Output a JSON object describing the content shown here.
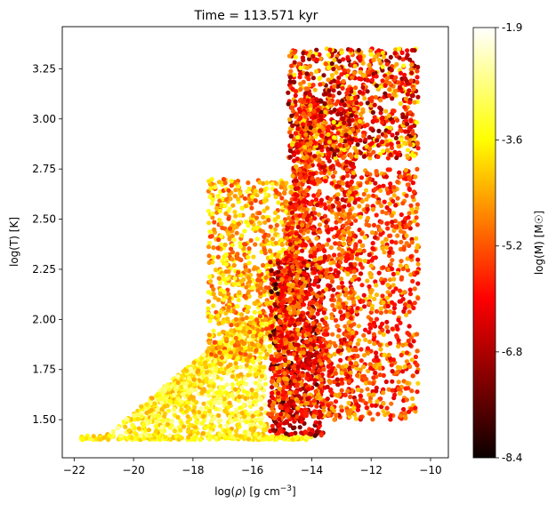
{
  "chart_data": {
    "type": "scatter",
    "title": "Time = 113.571 kyr",
    "xlabel_main": "log(",
    "xlabel_rho": "ρ",
    "xlabel_units": ") [g cm",
    "xlabel_exp": "−3",
    "xlabel_end": "]",
    "ylabel": "log(T) [K]",
    "colorbar_label": "log(M) [M☉]",
    "xlim": [
      -22.4,
      -9.4
    ],
    "ylim": [
      1.31,
      3.46
    ],
    "xticks": [
      -22,
      -20,
      -18,
      -16,
      -14,
      -12,
      -10
    ],
    "xtick_labels": [
      "−22",
      "−20",
      "−18",
      "−16",
      "−14",
      "−12",
      "−10"
    ],
    "yticks": [
      1.5,
      1.75,
      2.0,
      2.25,
      2.5,
      2.75,
      3.0,
      3.25
    ],
    "ytick_labels": [
      "1.50",
      "1.75",
      "2.00",
      "2.25",
      "2.50",
      "2.75",
      "3.00",
      "3.25"
    ],
    "colorbar": {
      "colormap": "hot",
      "range": [
        -8.4,
        -1.9
      ],
      "ticks": [
        -1.9,
        -3.6,
        -5.2,
        -6.8,
        -8.4
      ],
      "tick_labels": [
        "-1.9",
        "-3.6",
        "-5.2",
        "-6.8",
        "-8.4"
      ]
    },
    "point_bands": [
      {
        "name": "low-density-floor",
        "x": [
          -21.8,
          -14.0
        ],
        "y": [
          1.4,
          1.42
        ],
        "cmin": -4.2,
        "cmax": -3.0
      },
      {
        "name": "left-wedge",
        "x": [
          -21.0,
          -15.5
        ],
        "y": [
          1.42,
          2.0
        ],
        "cmin": -4.5,
        "cmax": -2.5
      },
      {
        "name": "upper-left-fans",
        "x": [
          -17.5,
          -14.5
        ],
        "y": [
          1.8,
          2.7
        ],
        "cmin": -5.5,
        "cmax": -3.2
      },
      {
        "name": "central-red-stripe",
        "x": [
          -15.4,
          -13.6
        ],
        "y": [
          1.42,
          2.3
        ],
        "cmin": -8.0,
        "cmax": -5.5
      },
      {
        "name": "middle-bands",
        "x": [
          -15.5,
          -12.5
        ],
        "y": [
          1.5,
          3.1
        ],
        "cmin": -6.8,
        "cmax": -4.2
      },
      {
        "name": "upper-cap",
        "x": [
          -14.8,
          -10.4
        ],
        "y": [
          2.8,
          3.35
        ],
        "cmin": -7.5,
        "cmax": -3.5
      },
      {
        "name": "right-wing",
        "x": [
          -12.8,
          -10.4
        ],
        "y": [
          1.5,
          2.75
        ],
        "cmin": -6.5,
        "cmax": -4.0
      }
    ]
  }
}
